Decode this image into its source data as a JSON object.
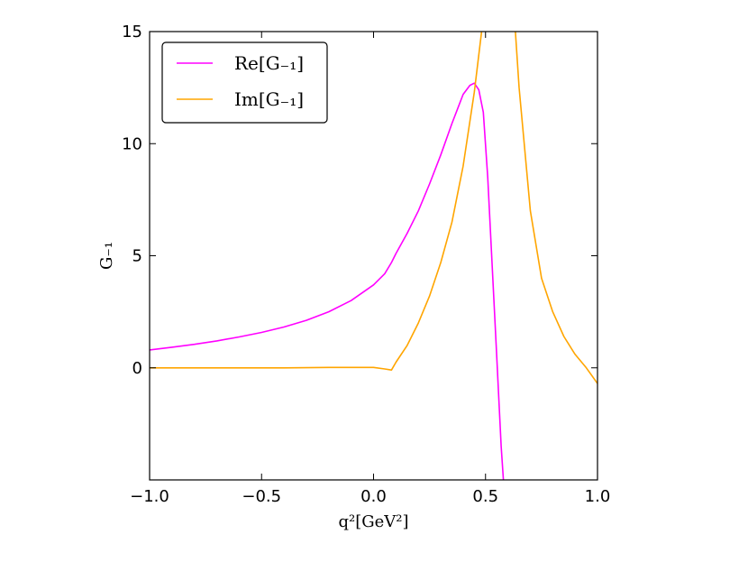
{
  "chart_data": {
    "type": "line",
    "xlabel": "q²[GeV²]",
    "ylabel": "G₋₁",
    "xlim": [
      -1.0,
      1.0
    ],
    "ylim": [
      -5.0,
      15.0
    ],
    "x_ticks": [
      {
        "value": -1.0,
        "label": "−1.0"
      },
      {
        "value": -0.5,
        "label": "−0.5"
      },
      {
        "value": 0.0,
        "label": "0.0"
      },
      {
        "value": 0.5,
        "label": "0.5"
      },
      {
        "value": 1.0,
        "label": "1.0"
      }
    ],
    "y_ticks": [
      {
        "value": 0,
        "label": "0"
      },
      {
        "value": 5,
        "label": "5"
      },
      {
        "value": 10,
        "label": "10"
      },
      {
        "value": 15,
        "label": "15"
      }
    ],
    "grid": false,
    "legend_position": "top-left",
    "series": [
      {
        "name": "Re[G₋₁]",
        "color": "#ff00ff",
        "x": [
          -1.0,
          -0.9,
          -0.8,
          -0.7,
          -0.6,
          -0.5,
          -0.4,
          -0.3,
          -0.2,
          -0.1,
          0.0,
          0.05,
          0.08,
          0.1,
          0.15,
          0.2,
          0.25,
          0.3,
          0.35,
          0.4,
          0.43,
          0.45,
          0.47,
          0.49,
          0.51,
          0.53,
          0.55,
          0.57,
          0.58
        ],
        "y": [
          0.8,
          0.92,
          1.05,
          1.2,
          1.38,
          1.58,
          1.82,
          2.12,
          2.5,
          3.0,
          3.7,
          4.2,
          4.7,
          5.1,
          6.0,
          7.0,
          8.2,
          9.5,
          10.9,
          12.2,
          12.6,
          12.7,
          12.4,
          11.4,
          8.5,
          4.5,
          0.5,
          -3.5,
          -5.0
        ]
      },
      {
        "name": "Im[G₋₁]",
        "color": "#ffa500",
        "x": [
          -1.0,
          -0.8,
          -0.6,
          -0.4,
          -0.2,
          0.0,
          0.05,
          0.08,
          0.1,
          0.15,
          0.2,
          0.25,
          0.3,
          0.35,
          0.4,
          0.45,
          0.48,
          0.5,
          0.51,
          0.54,
          0.55,
          0.56,
          0.58,
          0.6,
          0.62,
          0.65,
          0.7,
          0.75,
          0.8,
          0.85,
          0.9,
          0.95,
          1.0
        ],
        "y": [
          0.0,
          0.0,
          0.0,
          0.0,
          0.02,
          0.02,
          -0.05,
          -0.1,
          0.25,
          1.0,
          2.0,
          3.2,
          4.7,
          6.5,
          9.0,
          12.3,
          14.8,
          16.5,
          17.0,
          17.0,
          17.0,
          17.0,
          17.0,
          17.0,
          17.0,
          12.5,
          7.0,
          4.0,
          2.5,
          1.4,
          0.6,
          0.0,
          -0.7
        ]
      }
    ]
  }
}
